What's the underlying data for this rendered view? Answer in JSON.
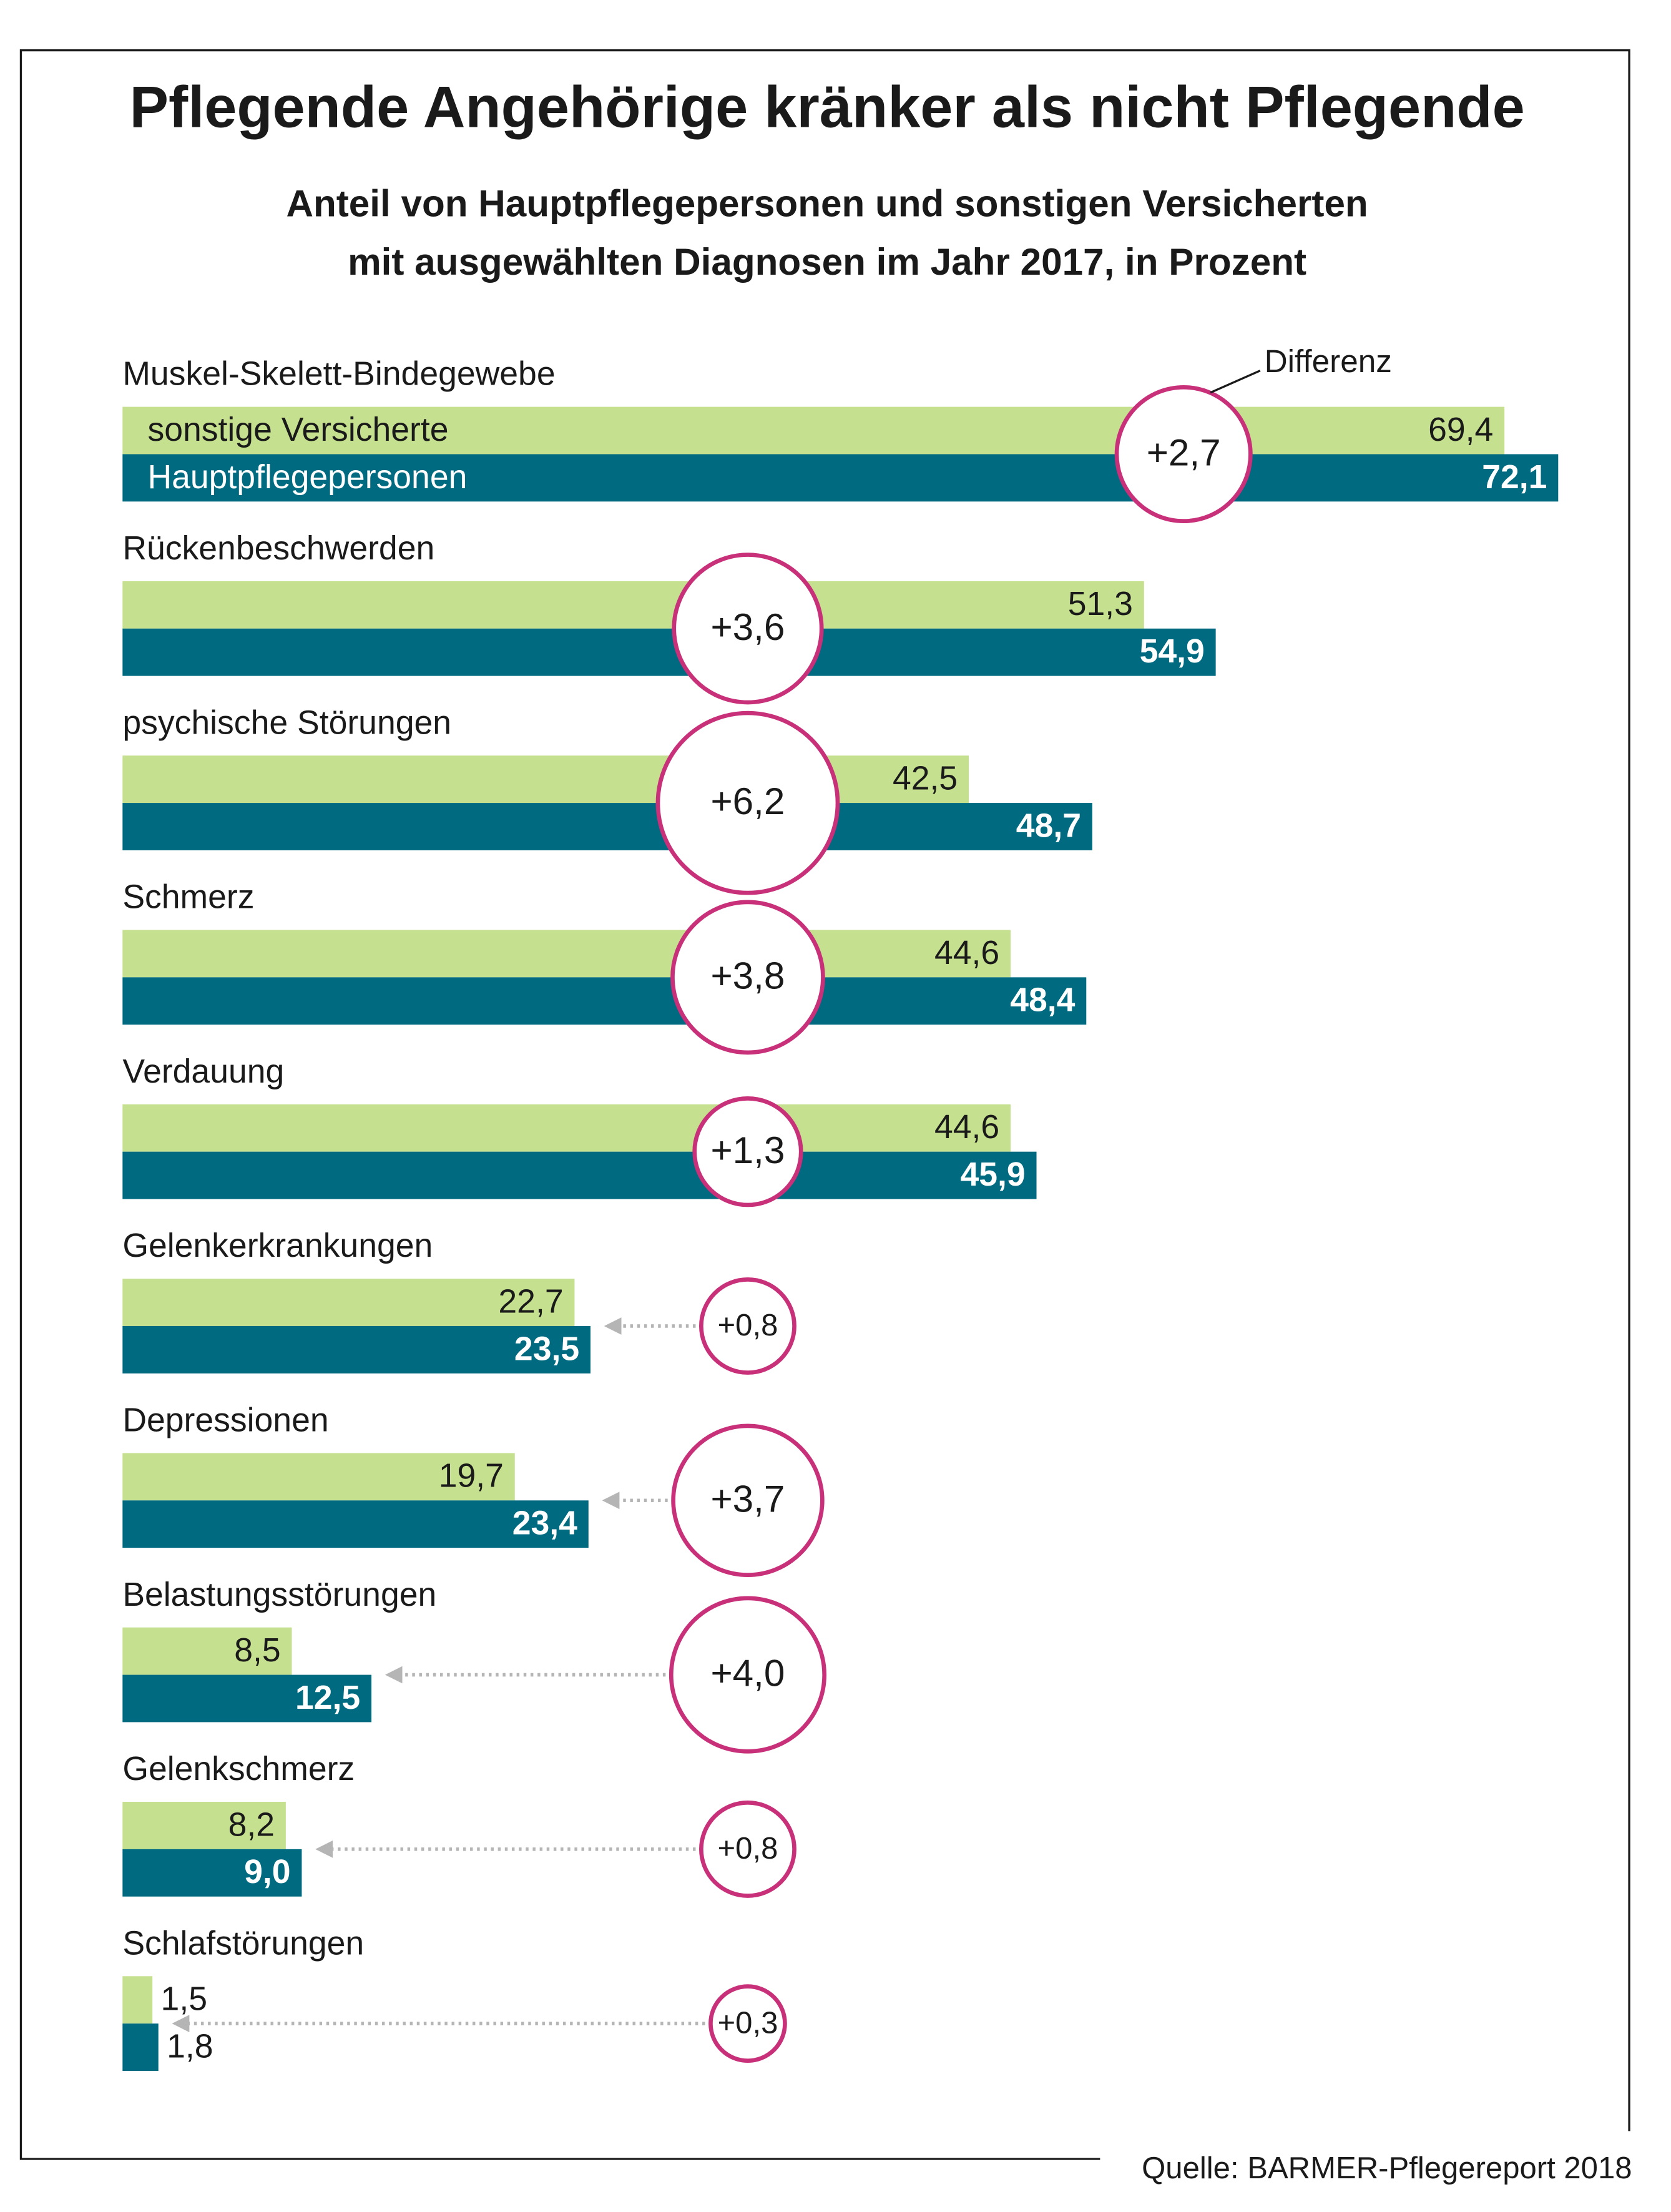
{
  "chart_data": {
    "type": "bar",
    "title": "Pflegende Angehörige kränker als nicht Pflegende",
    "subtitle": [
      "Anteil von Hauptpflegepersonen und sonstigen Versicherten",
      "mit ausgewählten Diagnosen im Jahr 2017, in Prozent"
    ],
    "categories": [
      "Muskel-Skelett-Bindegewebe",
      "Rückenbeschwerden",
      "psychische Störungen",
      "Schmerz",
      "Verdauung",
      "Gelenkerkrankungen",
      "Depressionen",
      "Belastungsstörungen",
      "Gelenkschmerz",
      "Schlafstörungen"
    ],
    "series": [
      {
        "name": "sonstige Versicherte",
        "color": "#c5e08e",
        "values": [
          69.4,
          51.3,
          42.5,
          44.6,
          44.6,
          22.7,
          19.7,
          8.5,
          8.2,
          1.5
        ],
        "value_labels": [
          "69,4",
          "51,3",
          "42,5",
          "44,6",
          "44,6",
          "22,7",
          "19,7",
          "8,5",
          "8,2",
          "1,5"
        ]
      },
      {
        "name": "Hauptpflegepersonen",
        "color": "#006a80",
        "values": [
          72.1,
          54.9,
          48.7,
          48.4,
          45.9,
          23.5,
          23.4,
          12.5,
          9.0,
          1.8
        ],
        "value_labels": [
          "72,1",
          "54,9",
          "48,7",
          "48,4",
          "45,9",
          "23,5",
          "23,4",
          "12,5",
          "9,0",
          "1,8"
        ]
      }
    ],
    "differences": {
      "name": "Differenz",
      "color": "#c8307a",
      "values": [
        2.7,
        3.6,
        6.2,
        3.8,
        1.3,
        0.8,
        3.7,
        4.0,
        0.8,
        0.3
      ],
      "value_labels": [
        "+2,7",
        "+3,6",
        "+6,2",
        "+3,8",
        "+1,3",
        "+0,8",
        "+3,7",
        "+4,0",
        "+0,8",
        "+0,3"
      ]
    },
    "source": "Quelle: BARMER-Pflegereport 2018"
  }
}
